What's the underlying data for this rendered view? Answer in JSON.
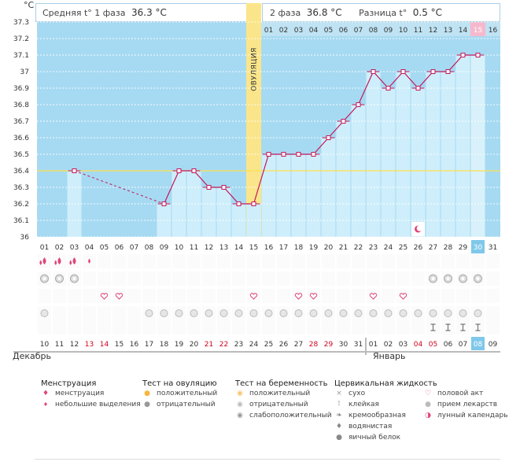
{
  "header": {
    "phase1_label": "Средняя t° 1 фаза",
    "phase1_value": "36.3 °C",
    "phase2_label": "2 фаза",
    "phase2_value": "36.8 °C",
    "diff_label": "Разница t°",
    "diff_value": "0.5 °C"
  },
  "unit_label": "°C",
  "ovulation_label": "ОВУЛЯЦИЯ",
  "months": {
    "first": "Декабрь",
    "second": "Январь"
  },
  "colors": {
    "chart_bg": "#a6daf2",
    "bar": "#cfeefb",
    "line": "#c2185b",
    "ovulation": "#fbe58a",
    "highlight": "#f6b8cc",
    "cover_line": "#ffe04d",
    "weekend": "#d0021b"
  },
  "chart_data": {
    "type": "line",
    "ylabel": "°C",
    "ylim": [
      36.0,
      37.3
    ],
    "yticks": [
      "36",
      "36.1",
      "36.2",
      "36.3",
      "36.4",
      "36.5",
      "36.6",
      "36.7",
      "36.8",
      "36.9",
      "37",
      "37.1",
      "37.2",
      "37.3"
    ],
    "cycle_days": [
      "01",
      "02",
      "03",
      "04",
      "05",
      "06",
      "07",
      "08",
      "09",
      "10",
      "11",
      "12",
      "13",
      "14",
      "15",
      "16",
      "17",
      "18",
      "19",
      "20",
      "21",
      "22",
      "23",
      "24",
      "25",
      "26",
      "27",
      "28",
      "29",
      "30",
      "31"
    ],
    "dates": [
      "10",
      "11",
      "12",
      "13",
      "14",
      "15",
      "16",
      "17",
      "18",
      "19",
      "20",
      "21",
      "22",
      "23",
      "24",
      "25",
      "26",
      "27",
      "28",
      "29",
      "30",
      "31",
      "01",
      "02",
      "03",
      "04",
      "05",
      "06",
      "07",
      "08",
      "09"
    ],
    "weekend_dates_index": [
      3,
      4,
      11,
      12,
      18,
      19,
      25,
      26
    ],
    "luteal_days": [
      "01",
      "02",
      "03",
      "04",
      "05",
      "06",
      "07",
      "08",
      "09",
      "10",
      "11",
      "12",
      "13",
      "14",
      "15",
      "16"
    ],
    "coverline": 36.4,
    "ovulation_day": 15,
    "highlight_day": 30,
    "temperatures": [
      null,
      null,
      36.4,
      null,
      null,
      null,
      null,
      null,
      36.2,
      36.4,
      36.4,
      36.3,
      36.3,
      36.2,
      36.2,
      36.5,
      36.5,
      36.5,
      36.5,
      36.6,
      36.7,
      36.8,
      37.0,
      36.9,
      37.0,
      36.9,
      37.0,
      37.0,
      37.1,
      37.1,
      null
    ],
    "dashed_segment": [
      3,
      9
    ],
    "rows": {
      "menstruation_heavy": [
        1,
        2,
        3
      ],
      "menstruation_light": [
        4
      ],
      "ovulation_test_negative": [
        1,
        2,
        3,
        27,
        28,
        29,
        30
      ],
      "intercourse": [
        5,
        6,
        15,
        18,
        19,
        23,
        25
      ],
      "pregnancy_test": [
        1,
        8,
        9,
        10,
        11,
        12,
        13,
        14,
        15,
        16,
        17,
        18,
        19,
        20,
        21,
        22,
        23,
        24,
        25,
        26,
        27,
        28,
        29,
        30
      ],
      "cervical_sticky": [
        27,
        28,
        29,
        30
      ],
      "lunar_calendar": [
        26
      ]
    }
  },
  "legend": {
    "menstruation": {
      "title": "Менструация",
      "items": [
        "менструация",
        "небольшие выделения"
      ]
    },
    "ovulation_test": {
      "title": "Тест на овуляцию",
      "items": [
        "положительный",
        "отрицательный"
      ]
    },
    "pregnancy_test": {
      "title": "Тест на беременность",
      "items": [
        "положительный",
        "отрицательный",
        "слабоположительный"
      ]
    },
    "cervical": {
      "title": "Цервикальная жидкость",
      "items": [
        "сухо",
        "клейкая",
        "кремообразная",
        "водянистая",
        "яичный белок"
      ]
    },
    "other": {
      "items": [
        "половой акт",
        "прием лекарств",
        "лунный календарь"
      ]
    }
  }
}
